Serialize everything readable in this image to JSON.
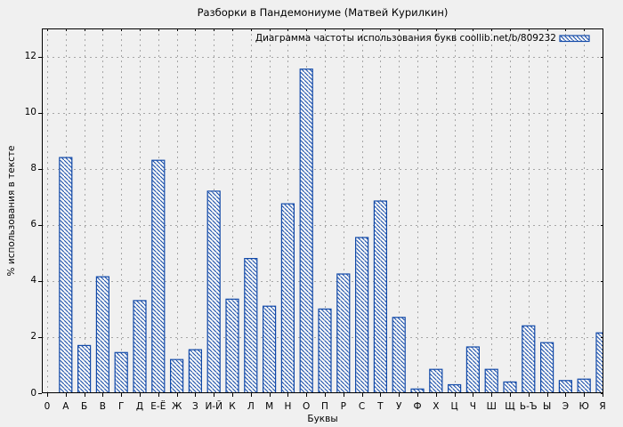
{
  "chart_data": {
    "type": "bar",
    "title": "Разборки в Пандемониуме (Матвей Курилкин)",
    "legend": "Диаграмма частоты использования букв coollib.net/b/809232",
    "legend_position": "top-right-inside",
    "xlabel": "Буквы",
    "ylabel": "% использования в тексте",
    "x_origin_tick": "0",
    "categories": [
      "А",
      "Б",
      "В",
      "Г",
      "Д",
      "Е-Ё",
      "Ж",
      "З",
      "И-Й",
      "К",
      "Л",
      "М",
      "Н",
      "О",
      "П",
      "Р",
      "С",
      "Т",
      "У",
      "Ф",
      "Х",
      "Ц",
      "Ч",
      "Ш",
      "Щ",
      "Ь-Ъ",
      "Ы",
      "Э",
      "Ю",
      "Я"
    ],
    "values": [
      8.4,
      1.7,
      4.15,
      1.45,
      3.3,
      8.3,
      1.2,
      1.55,
      7.2,
      3.35,
      4.8,
      3.1,
      6.75,
      11.55,
      3.0,
      4.25,
      5.55,
      6.85,
      2.7,
      0.15,
      0.85,
      0.3,
      1.65,
      0.85,
      0.4,
      2.4,
      1.8,
      0.45,
      0.5,
      2.15
    ],
    "yticks": [
      0,
      2,
      4,
      6,
      8,
      10,
      12
    ],
    "ylim": [
      0,
      13
    ],
    "grid": true,
    "bar_style": "hatched-diagonal",
    "colors": {
      "bar_border": "#1149a8",
      "bar_fill": "#f8f8f8",
      "background": "#f0f0f0",
      "grid": "#a6a6a6",
      "axis": "#000000",
      "text": "#000000"
    }
  }
}
